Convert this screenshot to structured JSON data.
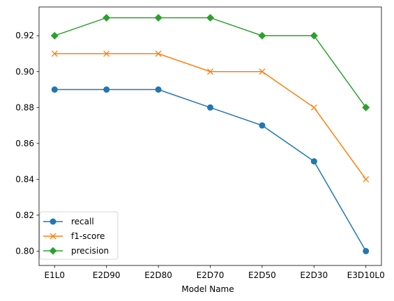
{
  "chart_data": {
    "type": "line",
    "title": "",
    "xlabel": "Model Name",
    "ylabel": "",
    "categories": [
      "E1L0",
      "E2D90",
      "E2D80",
      "E2D70",
      "E2D50",
      "E2D30",
      "E3D10L0"
    ],
    "ylim": [
      0.792,
      0.936
    ],
    "yticks": [
      0.8,
      0.82,
      0.84,
      0.86,
      0.88,
      0.9,
      0.92
    ],
    "ytick_labels": [
      "0.80",
      "0.82",
      "0.84",
      "0.86",
      "0.88",
      "0.90",
      "0.92"
    ],
    "grid": false,
    "legend_position": "lower-left",
    "series": [
      {
        "name": "recall",
        "color": "#1f77b4",
        "marker": "circle",
        "values": [
          0.89,
          0.89,
          0.89,
          0.88,
          0.87,
          0.85,
          0.8
        ]
      },
      {
        "name": "f1-score",
        "color": "#ff7f0e",
        "marker": "x",
        "values": [
          0.91,
          0.91,
          0.91,
          0.9,
          0.9,
          0.88,
          0.84
        ]
      },
      {
        "name": "precision",
        "color": "#2ca02c",
        "marker": "diamond",
        "values": [
          0.92,
          0.93,
          0.93,
          0.93,
          0.92,
          0.92,
          0.88
        ]
      }
    ]
  }
}
